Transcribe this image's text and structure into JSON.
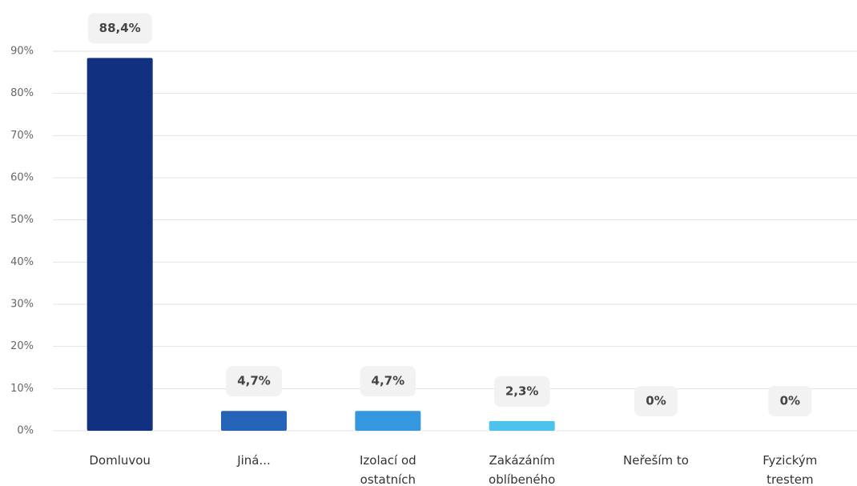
{
  "chart_data": {
    "type": "bar",
    "categories": [
      "Domluvou",
      "Jiná...",
      "Izolací od ostatních",
      "Zakázáním oblíbeného",
      "Neřeším to",
      "Fyzickým trestem"
    ],
    "values": [
      88.4,
      4.7,
      4.7,
      2.3,
      0,
      0
    ],
    "value_labels": [
      "88,4%",
      "4,7%",
      "4,7%",
      "2,3%",
      "0%",
      "0%"
    ],
    "colors": [
      "#11307f",
      "#2563b8",
      "#3597df",
      "#4cc2ec",
      "#4cc2ec",
      "#4cc2ec"
    ],
    "ylim": [
      0,
      90
    ],
    "yticks": [
      {
        "value": 0,
        "label": "0%"
      },
      {
        "value": 10,
        "label": "10%"
      },
      {
        "value": 20,
        "label": "20%"
      },
      {
        "value": 30,
        "label": "30%"
      },
      {
        "value": 40,
        "label": "40%"
      },
      {
        "value": 50,
        "label": "50%"
      },
      {
        "value": 60,
        "label": "60%"
      },
      {
        "value": 70,
        "label": "70%"
      },
      {
        "value": 80,
        "label": "80%"
      },
      {
        "value": 90,
        "label": "90%"
      }
    ],
    "grid": true
  }
}
